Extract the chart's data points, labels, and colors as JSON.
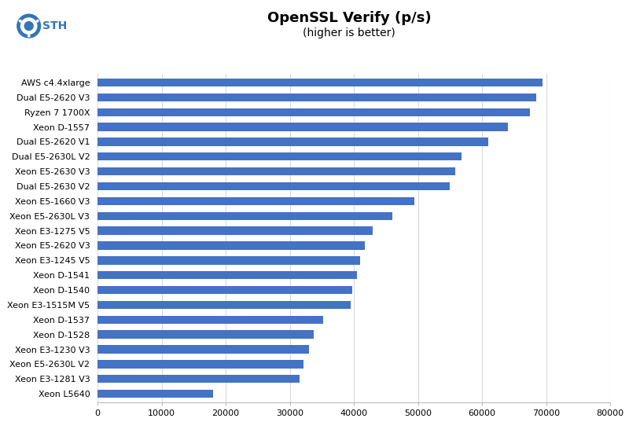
{
  "title": "OpenSSL Verify (p/s)",
  "subtitle": "(higher is better)",
  "categories": [
    "Xeon L5640",
    "Xeon E3-1281 V3",
    "Xeon E5-2630L V2",
    "Xeon E3-1230 V3",
    "Xeon D-1528",
    "Xeon D-1537",
    "Xeon E3-1515M V5",
    "Xeon D-1540",
    "Xeon D-1541",
    "Xeon E3-1245 V5",
    "Xeon E5-2620 V3",
    "Xeon E3-1275 V5",
    "Xeon E5-2630L V3",
    "Xeon E5-1660 V3",
    "Dual E5-2630 V2",
    "Xeon E5-2630 V3",
    "Dual E5-2630L V2",
    "Dual E5-2620 V1",
    "Xeon D-1557",
    "Ryzen 7 1700X",
    "Dual E5-2620 V3",
    "AWS c4.4xlarge"
  ],
  "values": [
    18000,
    31500,
    32200,
    33000,
    33700,
    35200,
    39500,
    39800,
    40500,
    41000,
    41700,
    43000,
    46000,
    49500,
    55000,
    55800,
    56800,
    61000,
    64000,
    67500,
    68500,
    69500
  ],
  "bar_color": "#4472C4",
  "bg_color": "#FFFFFF",
  "grid_color": "#D9D9D9",
  "xlim": [
    0,
    80000
  ],
  "xticks": [
    0,
    10000,
    20000,
    30000,
    40000,
    50000,
    60000,
    70000,
    80000
  ],
  "title_fontsize": 13,
  "subtitle_fontsize": 10,
  "axis_label_fontsize": 8,
  "tick_fontsize": 8,
  "logo_color": "#3375B7",
  "sth_text_color": "#3375B7"
}
